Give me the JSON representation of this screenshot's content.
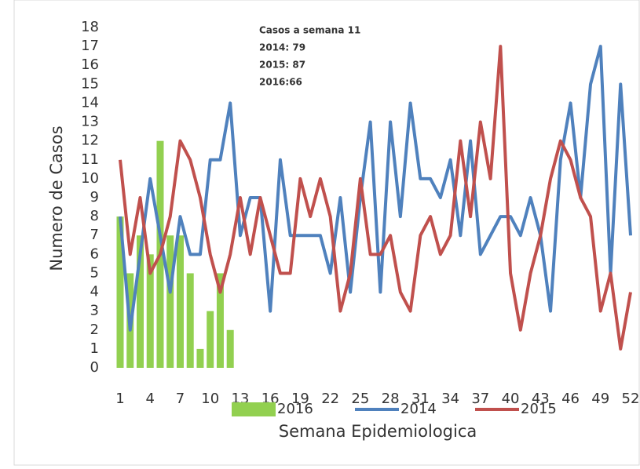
{
  "chart_data": {
    "type": "combo",
    "annotation": [
      "Casos a semana 11",
      "2014: 79",
      "2015: 87",
      "2016:66"
    ],
    "x_label": "Semana Epidemiologica",
    "y_label": "Numero de Casos",
    "x": [
      1,
      2,
      3,
      4,
      5,
      6,
      7,
      8,
      9,
      10,
      11,
      12,
      13,
      14,
      15,
      16,
      17,
      18,
      19,
      20,
      21,
      22,
      23,
      24,
      25,
      26,
      27,
      28,
      29,
      30,
      31,
      32,
      33,
      34,
      35,
      36,
      37,
      38,
      39,
      40,
      41,
      42,
      43,
      44,
      45,
      46,
      47,
      48,
      49,
      50,
      51,
      52
    ],
    "xlim": [
      1,
      52
    ],
    "xticks": [
      1,
      4,
      7,
      10,
      13,
      16,
      19,
      22,
      25,
      28,
      31,
      34,
      37,
      40,
      43,
      46,
      49,
      52
    ],
    "ylim": [
      0,
      18
    ],
    "yticks": [
      0,
      1,
      2,
      3,
      4,
      5,
      6,
      7,
      8,
      9,
      10,
      11,
      12,
      13,
      14,
      15,
      16,
      17,
      18
    ],
    "legend": "bottom",
    "series": [
      {
        "name": "2016",
        "type": "bar",
        "color": "#92d050",
        "values": [
          8,
          5,
          7,
          6,
          12,
          7,
          7,
          5,
          1,
          3,
          5,
          2,
          null,
          null,
          null,
          null,
          null,
          null,
          null,
          null,
          null,
          null,
          null,
          null,
          null,
          null,
          null,
          null,
          null,
          null,
          null,
          null,
          null,
          null,
          null,
          null,
          null,
          null,
          null,
          null,
          null,
          null,
          null,
          null,
          null,
          null,
          null,
          null,
          null,
          null,
          null,
          null
        ]
      },
      {
        "name": "2014",
        "type": "line",
        "color": "#4f81bd",
        "values": [
          8,
          2,
          6,
          10,
          7,
          4,
          8,
          6,
          6,
          11,
          11,
          14,
          7,
          9,
          9,
          3,
          11,
          7,
          7,
          7,
          7,
          5,
          9,
          4,
          9,
          13,
          4,
          13,
          8,
          14,
          10,
          10,
          9,
          11,
          7,
          12,
          6,
          7,
          8,
          8,
          7,
          9,
          7,
          3,
          11,
          14,
          9,
          15,
          17,
          5,
          15,
          7
        ]
      },
      {
        "name": "2015",
        "type": "line",
        "color": "#c0504d",
        "values": [
          11,
          6,
          9,
          5,
          6,
          8,
          12,
          11,
          9,
          6,
          4,
          6,
          9,
          6,
          9,
          7,
          5,
          5,
          10,
          8,
          10,
          8,
          3,
          5,
          10,
          6,
          6,
          7,
          4,
          3,
          7,
          8,
          6,
          7,
          12,
          8,
          13,
          10,
          17,
          5,
          2,
          5,
          7,
          10,
          12,
          11,
          9,
          8,
          3,
          5,
          1,
          4
        ]
      }
    ]
  }
}
